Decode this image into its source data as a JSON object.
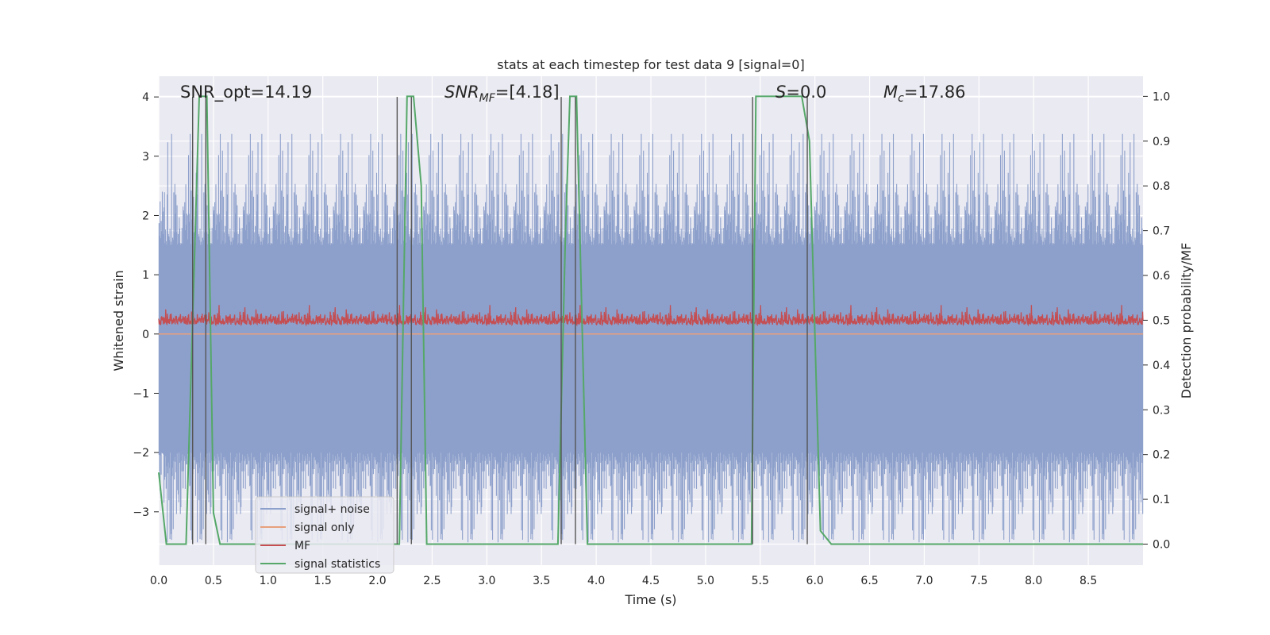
{
  "chart_data": {
    "type": "line",
    "title": "stats at each timestep for test data 9 [signal=0]",
    "xlabel": "Time (s)",
    "ylabel_left": "Whitened strain",
    "ylabel_right": "Detection probability/MF",
    "xlim": [
      0.0,
      9.0
    ],
    "ylim_left": [
      -3.9,
      4.35
    ],
    "ylim_right": [
      -0.047,
      1.045
    ],
    "xticks": [
      "0.0",
      "0.5",
      "1.0",
      "1.5",
      "2.0",
      "2.5",
      "3.0",
      "3.5",
      "4.0",
      "4.5",
      "5.0",
      "5.5",
      "6.0",
      "6.5",
      "7.0",
      "7.5",
      "8.0",
      "8.5"
    ],
    "yticks_left": [
      "4",
      "3",
      "2",
      "1",
      "0",
      "−1",
      "−2",
      "−3"
    ],
    "yticks_right": [
      "1.0",
      "0.9",
      "0.8",
      "0.7",
      "0.6",
      "0.5",
      "0.4",
      "0.3",
      "0.2",
      "0.1",
      "0.0"
    ],
    "grid": true,
    "annotations": [
      {
        "text": "SNR_opt=14.19"
      },
      {
        "text": "=[4.18]",
        "label": "SNR",
        "sub": "MF"
      },
      {
        "text": "=0.0",
        "label": "S"
      },
      {
        "text": "=17.86",
        "label": "M",
        "sub": "c"
      }
    ],
    "legend": {
      "position": "lower-left",
      "entries": [
        {
          "name": "signal+ noise",
          "color": "#8da0cb"
        },
        {
          "name": "signal only",
          "color": "#e8a07c"
        },
        {
          "name": "MF",
          "color": "#c44e52"
        },
        {
          "name": "signal statistics",
          "color": "#55a868"
        }
      ]
    },
    "series": [
      {
        "name": "signal+ noise",
        "axis": "left",
        "color": "#8da0cb",
        "envelope_upper_typical": [
          1.5,
          3.4
        ],
        "envelope_lower_typical": [
          -2.0,
          -3.6
        ],
        "sample_rate_hz": 1000
      },
      {
        "name": "signal only",
        "axis": "left",
        "color": "#e8a07c",
        "value": 0.0
      },
      {
        "name": "MF",
        "axis": "right",
        "color": "#c44e52",
        "range": [
          0.49,
          0.58
        ]
      },
      {
        "name": "signal statistics",
        "axis": "right",
        "color": "#55a868",
        "points": [
          [
            0.0,
            0.16
          ],
          [
            0.07,
            0.0
          ],
          [
            0.25,
            0.0
          ],
          [
            0.37,
            1.0
          ],
          [
            0.44,
            1.0
          ],
          [
            0.5,
            0.07
          ],
          [
            0.56,
            0.0
          ],
          [
            2.2,
            0.0
          ],
          [
            2.27,
            1.0
          ],
          [
            2.33,
            1.0
          ],
          [
            2.4,
            0.8
          ],
          [
            2.45,
            0.0
          ],
          [
            3.65,
            0.0
          ],
          [
            3.72,
            0.7
          ],
          [
            3.76,
            1.0
          ],
          [
            3.82,
            1.0
          ],
          [
            3.92,
            0.0
          ],
          [
            5.42,
            0.0
          ],
          [
            5.46,
            1.0
          ],
          [
            5.88,
            1.0
          ],
          [
            5.95,
            0.9
          ],
          [
            6.05,
            0.03
          ],
          [
            6.15,
            0.0
          ],
          [
            9.0,
            0.0
          ]
        ]
      }
    ],
    "vertical_markers": {
      "color": "#555555",
      "x": [
        0.31,
        0.43,
        2.18,
        2.31,
        3.68,
        3.81,
        5.43,
        5.93
      ]
    }
  }
}
